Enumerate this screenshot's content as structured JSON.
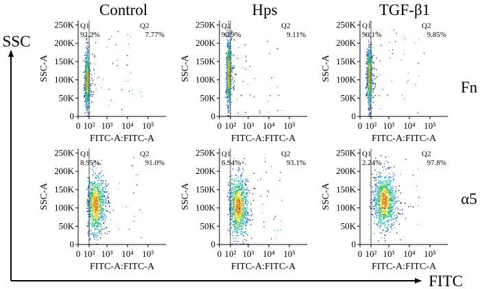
{
  "chart_data": {
    "type": "scatter",
    "title": "",
    "column_labels": [
      "Control",
      "Hps",
      "TGF-β1"
    ],
    "row_labels": [
      "Fn",
      "α5"
    ],
    "outer_axes": {
      "x_label": "FITC",
      "y_label": "SSC"
    },
    "panel_axes": {
      "xlabel": "FITC-A:FITC-A",
      "ylabel": "SSC-A",
      "x_ticks": [
        "0",
        "10²",
        "10³",
        "10⁴",
        "10⁵"
      ],
      "y_ticks": [
        "0",
        "50K",
        "100K",
        "150K",
        "200K",
        "250K"
      ],
      "y_tick_values": [
        0,
        50000,
        100000,
        150000,
        200000,
        250000
      ],
      "x_scale": "biexponential",
      "ylim": [
        0,
        262144
      ]
    },
    "quadrant_labels": [
      "Q1",
      "Q2"
    ],
    "panels": [
      {
        "row": "Fn",
        "column": "Control",
        "q1": "92.2%",
        "q2": "7.77%",
        "gate_x": 100,
        "population": {
          "center_fitc": 40,
          "center_ssc": 100000,
          "log_spread": 0.22,
          "ssc_spread": 45000
        }
      },
      {
        "row": "Fn",
        "column": "Hps",
        "q1": "90.9%",
        "q2": "9.11%",
        "gate_x": 100,
        "population": {
          "center_fitc": 45,
          "center_ssc": 120000,
          "log_spread": 0.22,
          "ssc_spread": 55000
        }
      },
      {
        "row": "Fn",
        "column": "TGF-β1",
        "q1": "90.1%",
        "q2": "9.85%",
        "gate_x": 100,
        "population": {
          "center_fitc": 45,
          "center_ssc": 110000,
          "log_spread": 0.22,
          "ssc_spread": 50000
        }
      },
      {
        "row": "α5",
        "column": "Control",
        "q1": "8.95%",
        "q2": "91.0%",
        "gate_x": 100,
        "population": {
          "center_fitc": 220,
          "center_ssc": 110000,
          "log_spread": 0.28,
          "ssc_spread": 50000
        }
      },
      {
        "row": "α5",
        "column": "Hps",
        "q1": "6.94%",
        "q2": "93.1%",
        "gate_x": 100,
        "population": {
          "center_fitc": 260,
          "center_ssc": 105000,
          "log_spread": 0.3,
          "ssc_spread": 50000
        }
      },
      {
        "row": "α5",
        "column": "TGF-β1",
        "q1": "2.24%",
        "q2": "97.8%",
        "gate_x": 100,
        "population": {
          "center_fitc": 550,
          "center_ssc": 120000,
          "log_spread": 0.32,
          "ssc_spread": 45000
        }
      }
    ],
    "colors": {
      "density": [
        "#0a1a8c",
        "#1f5fd6",
        "#19b4c8",
        "#2fbf5a",
        "#e6d21e",
        "#e8821a"
      ],
      "axis": "#000000",
      "gate": "#555555"
    }
  }
}
